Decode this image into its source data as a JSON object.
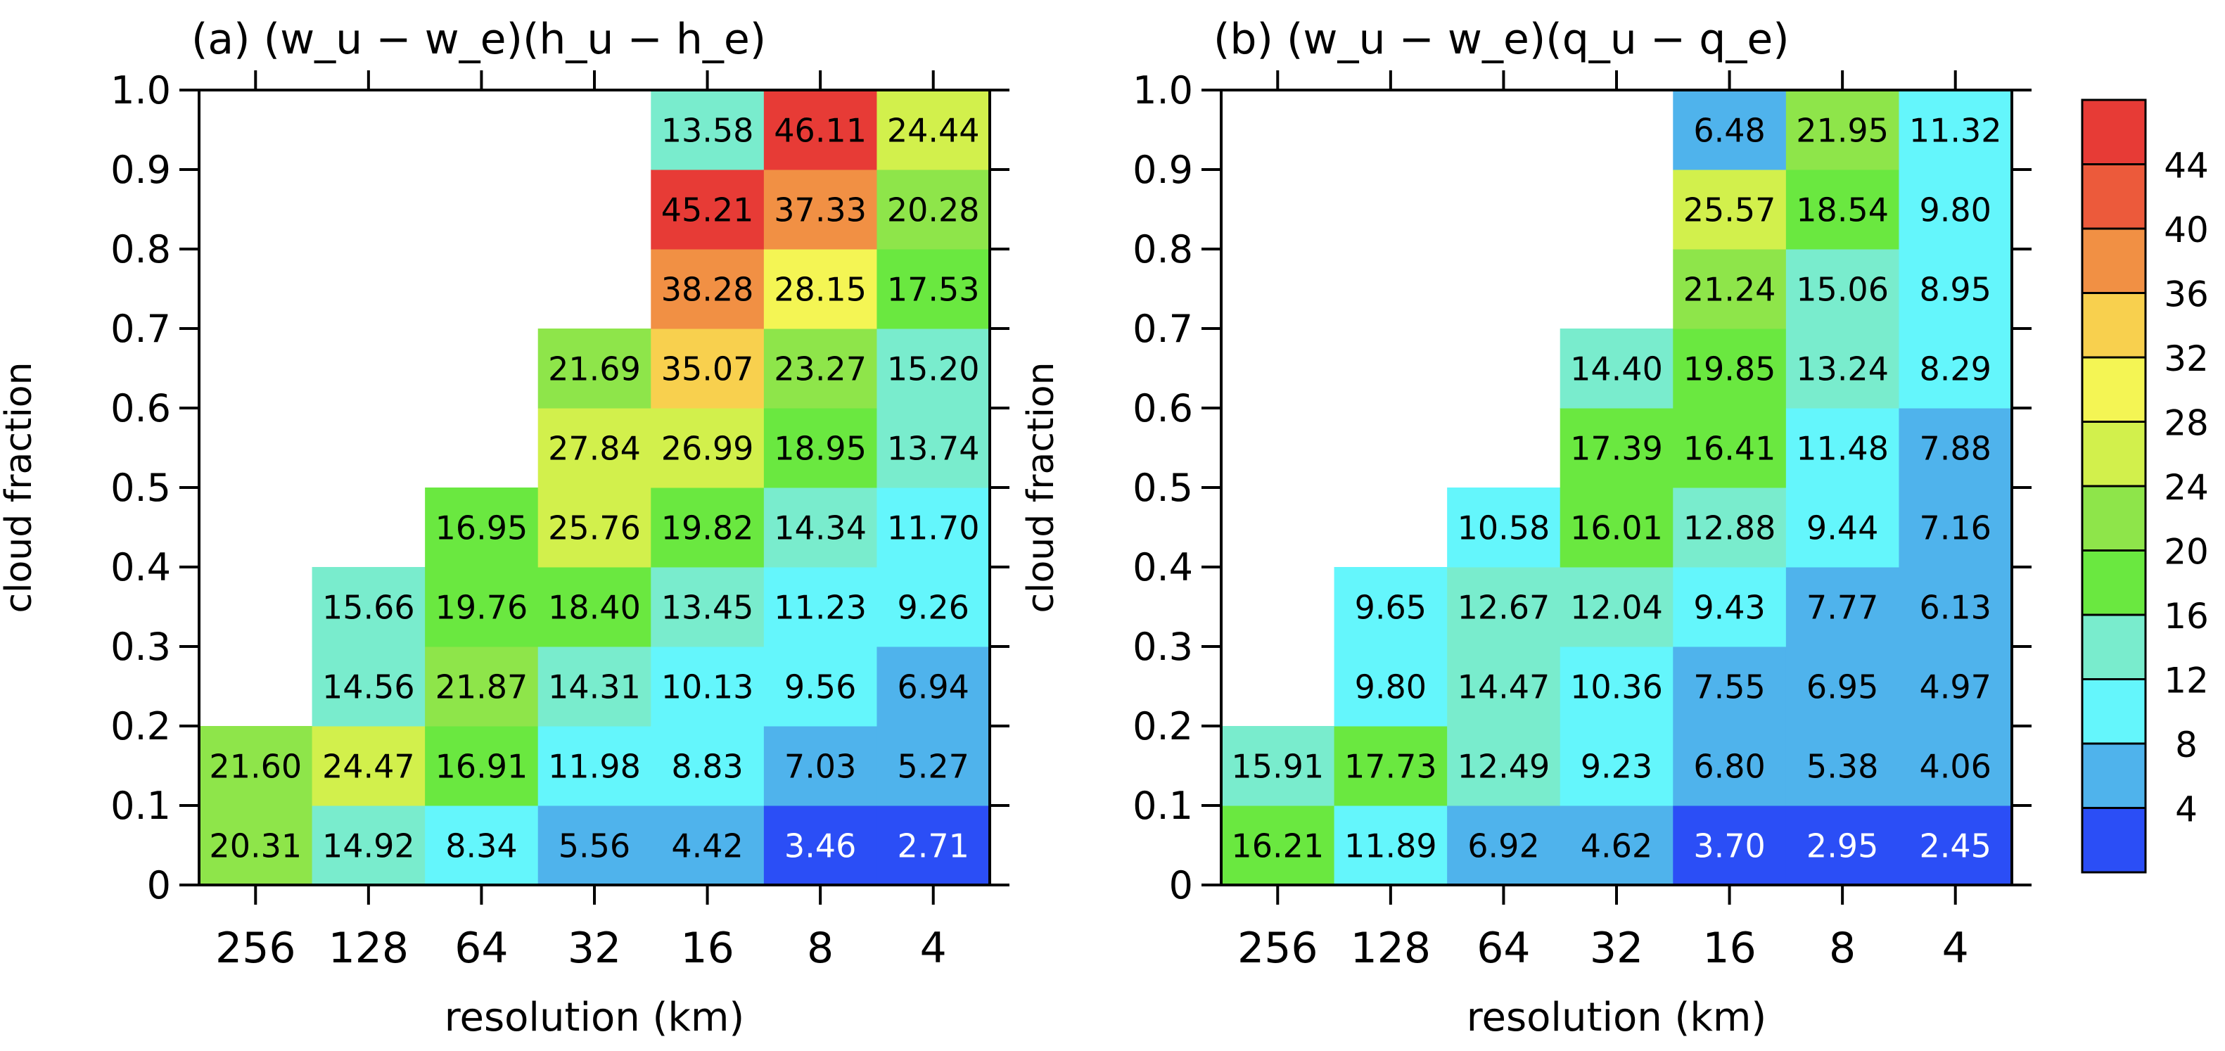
{
  "chart_data": [
    {
      "type": "heatmap",
      "panel": "a",
      "title": "(a) (w_u − w_e)(h_u − h_e)",
      "xlabel": "resolution (km)",
      "ylabel": "cloud fraction",
      "x_categories": [
        "256",
        "128",
        "64",
        "32",
        "16",
        "8",
        "4"
      ],
      "y_ticks": [
        "0",
        "0.1",
        "0.2",
        "0.3",
        "0.4",
        "0.5",
        "0.6",
        "0.7",
        "0.8",
        "0.9",
        "1.0"
      ],
      "ylim": [
        0,
        1
      ],
      "values": [
        [
          20.31,
          14.92,
          8.34,
          5.56,
          4.42,
          3.46,
          2.71
        ],
        [
          21.6,
          24.47,
          16.91,
          11.98,
          8.83,
          7.03,
          5.27
        ],
        [
          null,
          14.56,
          21.87,
          14.31,
          10.13,
          9.56,
          6.94
        ],
        [
          null,
          15.66,
          19.76,
          18.4,
          13.45,
          11.23,
          9.26
        ],
        [
          null,
          null,
          16.95,
          25.76,
          19.82,
          14.34,
          11.7
        ],
        [
          null,
          null,
          null,
          27.84,
          26.99,
          18.95,
          13.74
        ],
        [
          null,
          null,
          null,
          21.69,
          35.07,
          23.27,
          15.2
        ],
        [
          null,
          null,
          null,
          null,
          38.28,
          28.15,
          17.53
        ],
        [
          null,
          null,
          null,
          null,
          45.21,
          37.33,
          20.28
        ],
        [
          null,
          null,
          null,
          null,
          13.58,
          46.11,
          24.44
        ]
      ]
    },
    {
      "type": "heatmap",
      "panel": "b",
      "title": "(b) (w_u − w_e)(q_u − q_e)",
      "xlabel": "resolution (km)",
      "ylabel": "cloud fraction",
      "x_categories": [
        "256",
        "128",
        "64",
        "32",
        "16",
        "8",
        "4"
      ],
      "y_ticks": [
        "0",
        "0.1",
        "0.2",
        "0.3",
        "0.4",
        "0.5",
        "0.6",
        "0.7",
        "0.8",
        "0.9",
        "1.0"
      ],
      "ylim": [
        0,
        1
      ],
      "values": [
        [
          16.21,
          11.89,
          6.92,
          4.62,
          3.7,
          2.95,
          2.45
        ],
        [
          15.91,
          17.73,
          12.49,
          9.23,
          6.8,
          5.38,
          4.06
        ],
        [
          null,
          9.8,
          14.47,
          10.36,
          7.55,
          6.95,
          4.97
        ],
        [
          null,
          9.65,
          12.67,
          12.04,
          9.43,
          7.77,
          6.13
        ],
        [
          null,
          null,
          10.58,
          16.01,
          12.88,
          9.44,
          7.16
        ],
        [
          null,
          null,
          null,
          17.39,
          16.41,
          11.48,
          7.88
        ],
        [
          null,
          null,
          null,
          14.4,
          19.85,
          13.24,
          8.29
        ],
        [
          null,
          null,
          null,
          null,
          21.24,
          15.06,
          8.95
        ],
        [
          null,
          null,
          null,
          null,
          25.57,
          18.54,
          9.8
        ],
        [
          null,
          null,
          null,
          null,
          6.48,
          21.95,
          11.32
        ]
      ]
    }
  ],
  "colorbar": {
    "labels": [
      "4",
      "8",
      "12",
      "16",
      "20",
      "24",
      "28",
      "32",
      "36",
      "40",
      "44"
    ],
    "bounds": [
      0,
      4,
      8,
      12,
      16,
      20,
      24,
      28,
      32,
      36,
      40,
      44,
      100
    ],
    "colors": [
      "#2b4ef6",
      "#4fb3ec",
      "#64f6fc",
      "#79eccd",
      "#6ae840",
      "#8ee54a",
      "#d2f04c",
      "#f4f554",
      "#f8d04e",
      "#f19044",
      "#ec5a3b",
      "#e73b36"
    ]
  }
}
